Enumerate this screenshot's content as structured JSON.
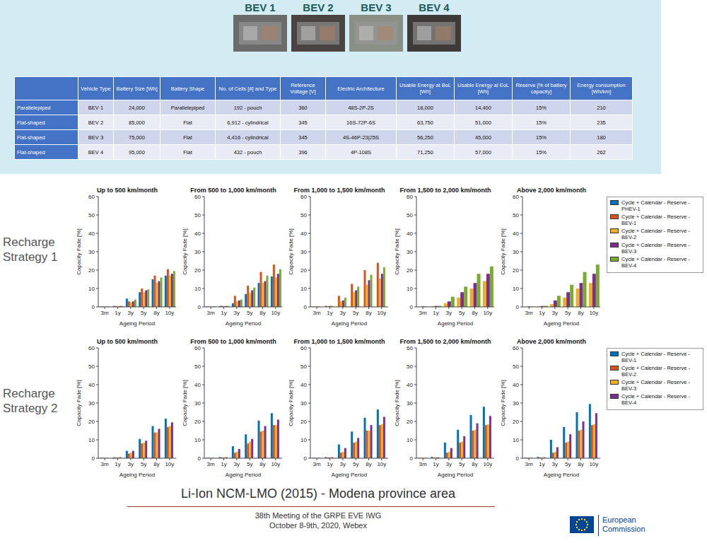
{
  "header": {
    "photo_labels": [
      "BEV 1",
      "BEV 2",
      "BEV 3",
      "BEV 4"
    ]
  },
  "table": {
    "columns": [
      "Vehicle Type",
      "Battery Size [Wh]",
      "Battery Shape",
      "No. of Cells [#] and Type",
      "Reference Voltage [V]",
      "Electric Architecture",
      "Usable Energy at BoL [Wh]",
      "Usable Energy at EoL [Wh]",
      "Reserve [% of battery capacity]",
      "Energy consumption [Wh/km]"
    ],
    "rows": [
      [
        "Parallelepiped",
        "BEV 1",
        "24,000",
        "Parallelepiped",
        "192 - pouch",
        "360",
        "48S-2P-2S",
        "18,000",
        "14,400",
        "15%",
        "210"
      ],
      [
        "Flat-shaped",
        "BEV 2",
        "85,000",
        "Flat",
        "6,912 - cylindrical",
        "345",
        "16S-72P-6S",
        "63,750",
        "51,000",
        "15%",
        "235"
      ],
      [
        "Flat-shaped",
        "BEV 3",
        "75,000",
        "Flat",
        "4,416 - cylindrical",
        "345",
        "4S-46P-23|25S",
        "56,250",
        "45,000",
        "15%",
        "180"
      ],
      [
        "Flat-shaped",
        "BEV 4",
        "95,000",
        "Flat",
        "432 - pouch",
        "396",
        "4P-108S",
        "71,250",
        "57,000",
        "15%",
        "262"
      ]
    ]
  },
  "row_labels": [
    "Recharge Strategy 1",
    "Recharge Strategy 2"
  ],
  "chart_data": [
    {
      "type": "bar",
      "title": "Up to 500 km/month",
      "x_label": "Ageing Period",
      "y_label": "Capacity Fade [%]",
      "categories": [
        "3m",
        "1y",
        "3y",
        "5y",
        "8y",
        "10y"
      ],
      "ylim": [
        0,
        60
      ],
      "yticks": [
        0,
        10,
        20,
        30,
        40,
        50,
        60
      ],
      "series": [
        {
          "name": "Cycle + Calendar - Reserve - PHEV-1",
          "color": "#0072BD",
          "values": [
            0.2,
            0.5,
            4.5,
            8,
            15,
            17
          ]
        },
        {
          "name": "Cycle + Calendar - Reserve - BEV-1",
          "color": "#D95319",
          "values": [
            0.2,
            0.5,
            3,
            10,
            17,
            20.5
          ]
        },
        {
          "name": "Cycle + Calendar - Reserve - BEV-2",
          "color": "#EDB120",
          "values": [
            0.2,
            0.4,
            2.5,
            8,
            13,
            17
          ]
        },
        {
          "name": "Cycle + Calendar - Reserve - BEV-3",
          "color": "#7E2F8E",
          "values": [
            0.2,
            0.5,
            3,
            9,
            14,
            18
          ]
        },
        {
          "name": "Cycle + Calendar - Reserve - BEV-4",
          "color": "#77AC30",
          "values": [
            0.2,
            0.5,
            4,
            9.5,
            16,
            19.5
          ]
        }
      ]
    },
    {
      "type": "bar",
      "title": "From 500 to 1,000 km/month",
      "x_label": "Ageing Period",
      "y_label": "Capacity Fade [%]",
      "categories": [
        "3m",
        "1y",
        "3y",
        "5y",
        "8y",
        "10y"
      ],
      "ylim": [
        0,
        60
      ],
      "yticks": [
        0,
        10,
        20,
        30,
        40,
        50,
        60
      ],
      "series": [
        {
          "name": "Cycle + Calendar - Reserve - PHEV-1",
          "color": "#0072BD",
          "values": [
            0.2,
            0.5,
            2,
            7,
            13,
            16.5
          ]
        },
        {
          "name": "Cycle + Calendar - Reserve - BEV-1",
          "color": "#D95319",
          "values": [
            0.2,
            0.6,
            6,
            11.5,
            19,
            23
          ]
        },
        {
          "name": "Cycle + Calendar - Reserve - BEV-2",
          "color": "#EDB120",
          "values": [
            0.2,
            0.4,
            3,
            7.5,
            13,
            16
          ]
        },
        {
          "name": "Cycle + Calendar - Reserve - BEV-3",
          "color": "#7E2F8E",
          "values": [
            0.2,
            0.5,
            3.5,
            9,
            14,
            18
          ]
        },
        {
          "name": "Cycle + Calendar - Reserve - BEV-4",
          "color": "#77AC30",
          "values": [
            0.2,
            0.5,
            4,
            10.5,
            17,
            20.5
          ]
        }
      ]
    },
    {
      "type": "bar",
      "title": "From 1,000 to 1,500 km/month",
      "x_label": "Ageing Period",
      "y_label": "Capacity Fade [%]",
      "categories": [
        "3m",
        "1y",
        "3y",
        "5y",
        "8y",
        "10y"
      ],
      "ylim": [
        0,
        60
      ],
      "yticks": [
        0,
        10,
        20,
        30,
        40,
        50,
        60
      ],
      "series": [
        {
          "name": "Cycle + Calendar - Reserve - BEV-1",
          "color": "#D95319",
          "values": [
            0.2,
            0.6,
            6,
            12.5,
            20,
            24
          ]
        },
        {
          "name": "Cycle + Calendar - Reserve - BEV-2",
          "color": "#EDB120",
          "values": [
            0.2,
            0.4,
            3,
            8,
            12,
            15.5
          ]
        },
        {
          "name": "Cycle + Calendar - Reserve - BEV-3",
          "color": "#7E2F8E",
          "values": [
            0.2,
            0.5,
            3.5,
            9,
            14.5,
            18
          ]
        },
        {
          "name": "Cycle + Calendar - Reserve - BEV-4",
          "color": "#77AC30",
          "values": [
            0.2,
            0.5,
            5,
            11,
            17.5,
            21.5
          ]
        }
      ]
    },
    {
      "type": "bar",
      "title": "From 1,500 to 2,000 km/month",
      "x_label": "Ageing Period",
      "y_label": "Capacity Fade [%]",
      "categories": [
        "3m",
        "1y",
        "3y",
        "5y",
        "8y",
        "10y"
      ],
      "ylim": [
        0,
        60
      ],
      "yticks": [
        0,
        10,
        20,
        30,
        40,
        50,
        60
      ],
      "series": [
        {
          "name": "Cycle + Calendar - Reserve - BEV-2",
          "color": "#EDB120",
          "values": [
            0.1,
            0.4,
            2,
            5,
            10,
            14
          ]
        },
        {
          "name": "Cycle + Calendar - Reserve - BEV-3",
          "color": "#7E2F8E",
          "values": [
            0.2,
            0.5,
            3,
            8,
            13,
            18
          ]
        },
        {
          "name": "Cycle + Calendar - Reserve - BEV-4",
          "color": "#77AC30",
          "values": [
            0.2,
            0.6,
            5.5,
            11,
            18,
            22
          ]
        }
      ]
    },
    {
      "type": "bar",
      "title": "Above 2,000 km/month",
      "x_label": "Ageing Period",
      "y_label": "Capacity Fade [%]",
      "categories": [
        "3m",
        "1y",
        "3y",
        "5y",
        "8y",
        "10y"
      ],
      "ylim": [
        0,
        60
      ],
      "yticks": [
        0,
        10,
        20,
        30,
        40,
        50,
        60
      ],
      "legend": "right",
      "series": [
        {
          "name": "Cycle + Calendar - Reserve - BEV-2",
          "color": "#EDB120",
          "values": [
            0.1,
            0.4,
            1.5,
            5,
            10,
            13
          ]
        },
        {
          "name": "Cycle + Calendar - Reserve - BEV-3",
          "color": "#7E2F8E",
          "values": [
            0.2,
            0.5,
            3.5,
            8,
            13,
            18
          ]
        },
        {
          "name": "Cycle + Calendar - Reserve - BEV-4",
          "color": "#77AC30",
          "values": [
            0.2,
            0.6,
            6,
            12,
            19,
            23
          ]
        }
      ]
    },
    {
      "type": "bar",
      "title": "Up to 500 km/month",
      "x_label": "Ageing Period",
      "y_label": "Capacity Fade [%]",
      "categories": [
        "3m",
        "1y",
        "3y",
        "5y",
        "8y",
        "10y"
      ],
      "ylim": [
        0,
        60
      ],
      "yticks": [
        0,
        10,
        20,
        30,
        40,
        50,
        60
      ],
      "series": [
        {
          "name": "Cycle + Calendar - Reserve - BEV-1",
          "color": "#0072BD",
          "values": [
            0.2,
            0.5,
            4,
            10.5,
            17.5,
            21.5
          ]
        },
        {
          "name": "Cycle + Calendar - Reserve - BEV-2",
          "color": "#D95319",
          "values": [
            0.2,
            0.4,
            2.5,
            8,
            14,
            17
          ]
        },
        {
          "name": "Cycle + Calendar - Reserve - BEV-3",
          "color": "#EDB120",
          "values": [
            0.2,
            0.5,
            3,
            8.5,
            14,
            17.5
          ]
        },
        {
          "name": "Cycle + Calendar - Reserve - BEV-4",
          "color": "#7E2F8E",
          "values": [
            0.2,
            0.5,
            4,
            9.5,
            16,
            19.5
          ]
        }
      ]
    },
    {
      "type": "bar",
      "title": "From 500 to 1,000 km/month",
      "x_label": "Ageing Period",
      "y_label": "Capacity Fade [%]",
      "categories": [
        "3m",
        "1y",
        "3y",
        "5y",
        "8y",
        "10y"
      ],
      "ylim": [
        0,
        60
      ],
      "yticks": [
        0,
        10,
        20,
        30,
        40,
        50,
        60
      ],
      "series": [
        {
          "name": "Cycle + Calendar - Reserve - BEV-1",
          "color": "#0072BD",
          "values": [
            0.2,
            0.6,
            6.5,
            13,
            20.5,
            24.5
          ]
        },
        {
          "name": "Cycle + Calendar - Reserve - BEV-2",
          "color": "#D95319",
          "values": [
            0.2,
            0.4,
            3,
            8,
            14.5,
            18
          ]
        },
        {
          "name": "Cycle + Calendar - Reserve - BEV-3",
          "color": "#EDB120",
          "values": [
            0.2,
            0.5,
            3.5,
            9,
            15,
            18
          ]
        },
        {
          "name": "Cycle + Calendar - Reserve - BEV-4",
          "color": "#7E2F8E",
          "values": [
            0.2,
            0.5,
            5,
            10.5,
            17.5,
            21
          ]
        }
      ]
    },
    {
      "type": "bar",
      "title": "From 1,000 to 1,500 km/month",
      "x_label": "Ageing Period",
      "y_label": "Capacity Fade [%]",
      "categories": [
        "3m",
        "1y",
        "3y",
        "5y",
        "8y",
        "10y"
      ],
      "ylim": [
        0,
        60
      ],
      "yticks": [
        0,
        10,
        20,
        30,
        40,
        50,
        60
      ],
      "series": [
        {
          "name": "Cycle + Calendar - Reserve - BEV-1",
          "color": "#0072BD",
          "values": [
            0.2,
            0.6,
            7.5,
            14.5,
            22,
            26.5
          ]
        },
        {
          "name": "Cycle + Calendar - Reserve - BEV-2",
          "color": "#D95319",
          "values": [
            0.2,
            0.4,
            3,
            8.5,
            15,
            18
          ]
        },
        {
          "name": "Cycle + Calendar - Reserve - BEV-3",
          "color": "#EDB120",
          "values": [
            0.2,
            0.5,
            3.5,
            9,
            15,
            18.5
          ]
        },
        {
          "name": "Cycle + Calendar - Reserve - BEV-4",
          "color": "#7E2F8E",
          "values": [
            0.2,
            0.5,
            5.5,
            11,
            18,
            22.5
          ]
        }
      ]
    },
    {
      "type": "bar",
      "title": "From 1,500 to 2,000 km/month",
      "x_label": "Ageing Period",
      "y_label": "Capacity Fade [%]",
      "categories": [
        "3m",
        "1y",
        "3y",
        "5y",
        "8y",
        "10y"
      ],
      "ylim": [
        0,
        60
      ],
      "yticks": [
        0,
        10,
        20,
        30,
        40,
        50,
        60
      ],
      "series": [
        {
          "name": "Cycle + Calendar - Reserve - BEV-1",
          "color": "#0072BD",
          "values": [
            0.2,
            0.7,
            8.5,
            15.5,
            23.5,
            28
          ]
        },
        {
          "name": "Cycle + Calendar - Reserve - BEV-2",
          "color": "#D95319",
          "values": [
            0.2,
            0.4,
            3,
            8.5,
            15,
            18
          ]
        },
        {
          "name": "Cycle + Calendar - Reserve - BEV-3",
          "color": "#EDB120",
          "values": [
            0.2,
            0.5,
            3.5,
            9,
            15.5,
            18.5
          ]
        },
        {
          "name": "Cycle + Calendar - Reserve - BEV-4",
          "color": "#7E2F8E",
          "values": [
            0.2,
            0.5,
            5.5,
            12,
            19,
            23
          ]
        }
      ]
    },
    {
      "type": "bar",
      "title": "Above 2,000 km/month",
      "x_label": "Ageing Period",
      "y_label": "Capacity Fade [%]",
      "categories": [
        "3m",
        "1y",
        "3y",
        "5y",
        "8y",
        "10y"
      ],
      "ylim": [
        0,
        60
      ],
      "yticks": [
        0,
        10,
        20,
        30,
        40,
        50,
        60
      ],
      "legend": "right",
      "series": [
        {
          "name": "Cycle + Calendar - Reserve - BEV-1",
          "color": "#0072BD",
          "values": [
            0.2,
            0.7,
            10,
            17,
            25,
            29.5
          ]
        },
        {
          "name": "Cycle + Calendar - Reserve - BEV-2",
          "color": "#D95319",
          "values": [
            0.2,
            0.4,
            3,
            8.5,
            15,
            18
          ]
        },
        {
          "name": "Cycle + Calendar - Reserve - BEV-3",
          "color": "#EDB120",
          "values": [
            0.2,
            0.5,
            3.5,
            9,
            15.5,
            18.5
          ]
        },
        {
          "name": "Cycle + Calendar - Reserve - BEV-4",
          "color": "#7E2F8E",
          "values": [
            0.2,
            0.5,
            6,
            13,
            20,
            24.5
          ]
        }
      ]
    }
  ],
  "footer": {
    "subtitle": "Li-Ion NCM-LMO (2015) - Modena province area",
    "meeting": "38th Meeting of the GRPE EVE IWG",
    "date": "October 8-9th, 2020, Webex",
    "logo_text": "European Commission"
  }
}
